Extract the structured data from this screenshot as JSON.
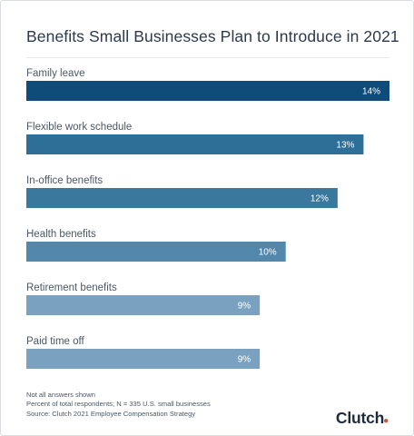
{
  "chart_data": {
    "type": "bar",
    "orientation": "horizontal",
    "title": "Benefits Small Businesses Plan to Introduce in 2021",
    "categories": [
      "Family leave",
      "Flexible work schedule",
      "In-office benefits",
      "Health benefits",
      "Retirement benefits",
      "Paid time off"
    ],
    "values": [
      14,
      13,
      12,
      10,
      9,
      9
    ],
    "value_labels": [
      "14%",
      "13%",
      "12%",
      "10%",
      "9%",
      "9%"
    ],
    "unit": "%",
    "xlim": [
      0,
      14
    ],
    "grid": false,
    "legend": "none",
    "colors": [
      "#0f4c7a",
      "#2e6f97",
      "#3a789e",
      "#5487ac",
      "#7aa2c0",
      "#7aa2c0"
    ]
  },
  "footer": {
    "notes": [
      "Not all answers shown",
      "Percent of total respondents; N = 335 U.S. small businesses",
      "Source: Clutch 2021 Employee Compensation Strategy"
    ]
  },
  "logo": {
    "text": "Clutch",
    "dot_color": "#d2523b"
  }
}
